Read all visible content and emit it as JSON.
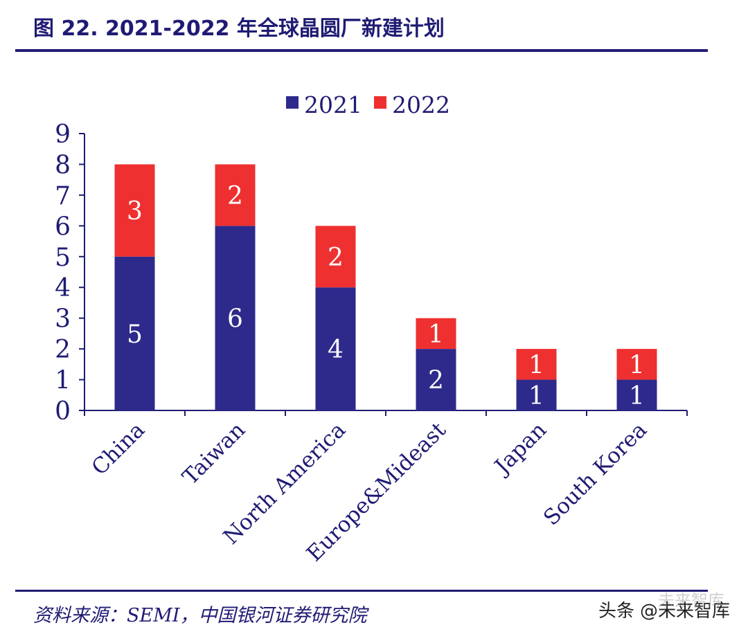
{
  "header": {
    "title": "图 22. 2021-2022 年全球晶圆厂新建计划"
  },
  "footer": {
    "source": "资料来源：SEMI，中国银河证券研究院",
    "watermark_platform": "头条",
    "watermark_account": "@未来智库",
    "watermark_faded": "未来智库"
  },
  "colors": {
    "series_2021": "#2e2a8c",
    "series_2022": "#ee3030",
    "axis": "#1f1b73",
    "label_text": "#ffffff"
  },
  "chart_data": {
    "type": "bar",
    "stacked": true,
    "title": "",
    "xlabel": "",
    "ylabel": "",
    "categories": [
      "China",
      "Taiwan",
      "North America",
      "Europe&Mideast",
      "Japan",
      "South Korea"
    ],
    "series": [
      {
        "name": "2021",
        "values": [
          5,
          6,
          4,
          2,
          1,
          1
        ]
      },
      {
        "name": "2022",
        "values": [
          3,
          2,
          2,
          1,
          1,
          1
        ]
      }
    ],
    "ylim": [
      0,
      9
    ],
    "yticks": [
      0,
      1,
      2,
      3,
      4,
      5,
      6,
      7,
      8,
      9
    ],
    "legend_position": "top-center",
    "grid": false
  }
}
